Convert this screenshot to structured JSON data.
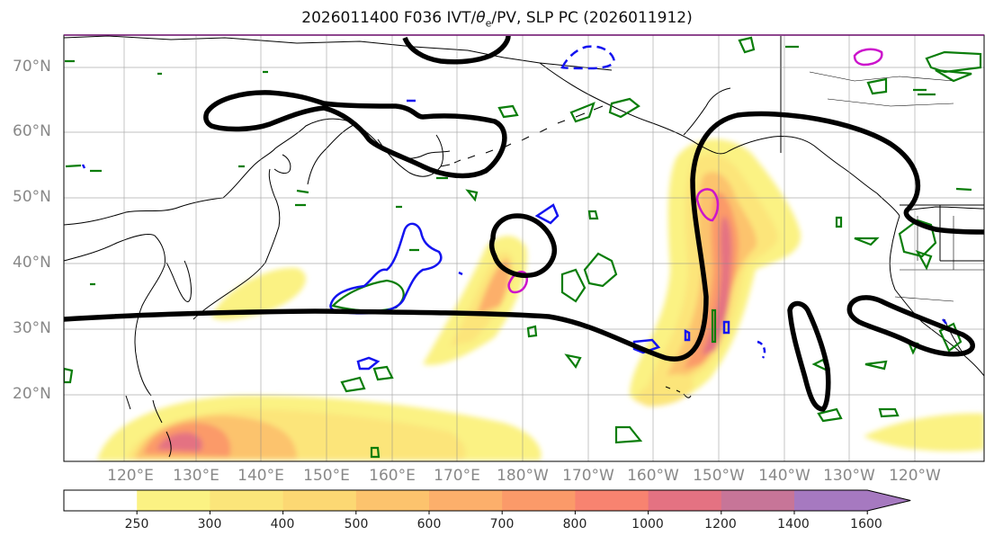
{
  "title": {
    "before": "2026011400 F036 IVT/",
    "theta": "θ",
    "sub": "e",
    "after": "/PV, SLP PC (2026011912)"
  },
  "lat_labels": [
    "70°N",
    "60°N",
    "50°N",
    "40°N",
    "30°N",
    "20°N"
  ],
  "lon_labels": [
    "120°E",
    "130°E",
    "140°E",
    "150°E",
    "160°E",
    "170°E",
    "180°W",
    "170°W",
    "160°W",
    "150°W",
    "140°W",
    "130°W",
    "120°W"
  ],
  "colorbar": {
    "ticks": [
      "250",
      "300",
      "400",
      "500",
      "600",
      "700",
      "800",
      "1000",
      "1200",
      "1400",
      "1600"
    ],
    "colors": [
      "#ffffff",
      "#fbf283",
      "#fbe57a",
      "#fcd873",
      "#fcc36d",
      "#fcaf6b",
      "#fb9a69",
      "#f88370",
      "#e47282",
      "#c77598",
      "#a679c0"
    ]
  },
  "contour_colors": {
    "slp": "#000000",
    "pv_green": "#0a7d0a",
    "pv_blue": "#1414f0",
    "pv_magenta": "#cc14cc"
  }
}
